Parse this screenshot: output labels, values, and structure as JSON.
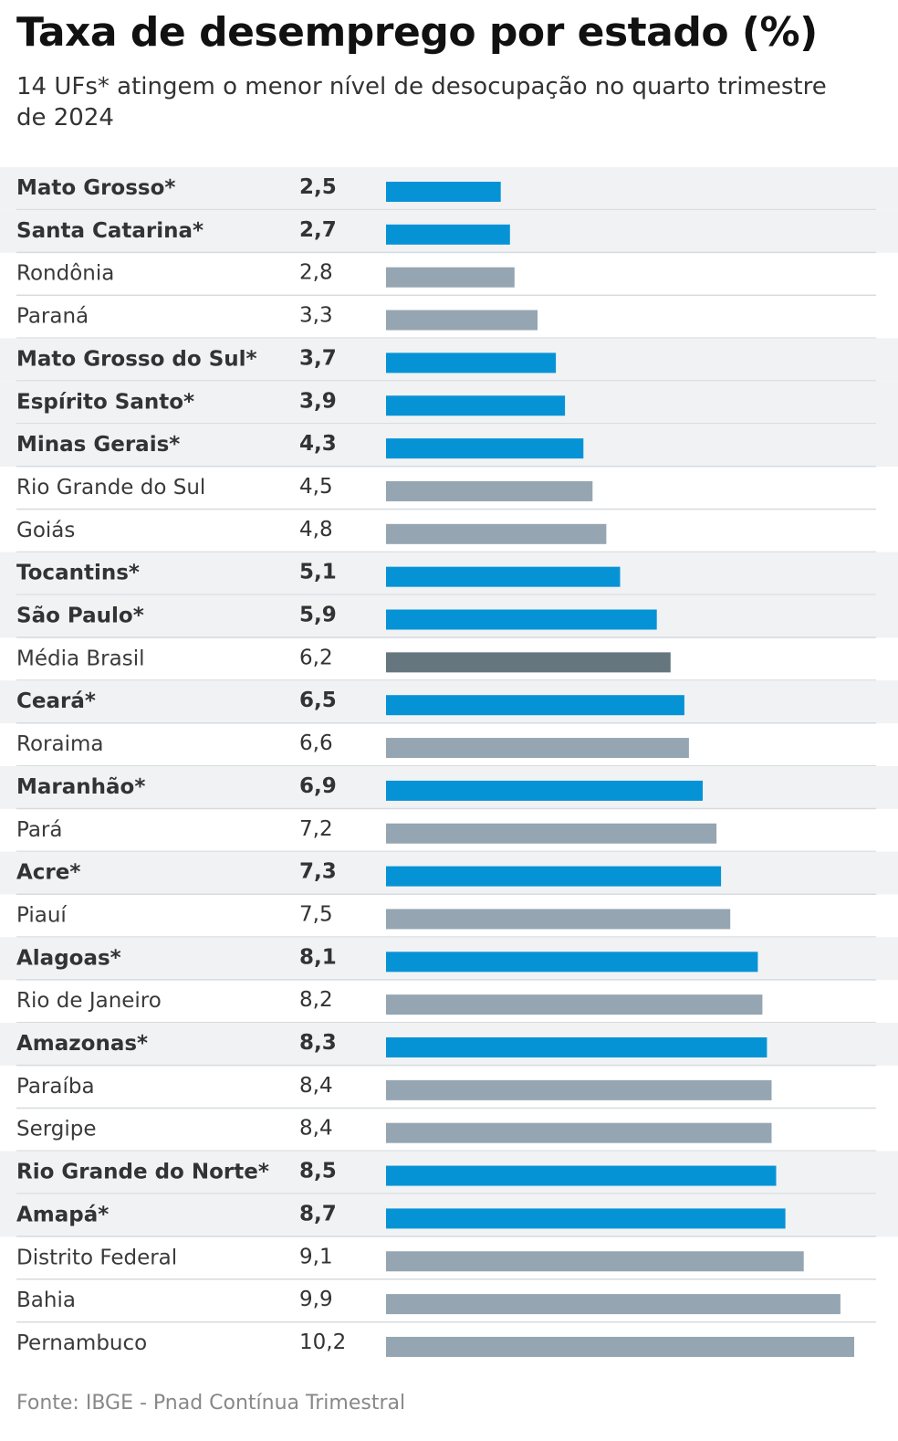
{
  "title": "Taxa de desemprego por estado (%)",
  "subtitle": "14 UFs* atingem o menor nível de desocupação no quarto trimestre de 2024",
  "source": "Fonte:  IBGE - Pnad Contínua Trimestral",
  "colors": {
    "highlight_bar": "#0693d6",
    "regular_bar": "#95a5b1",
    "average_bar": "#66767f",
    "highlight_row_bg": "#f0f2f4",
    "divider": "#d6dbdf"
  },
  "chart_data": {
    "type": "bar",
    "orientation": "horizontal",
    "xlim": [
      0,
      10.2
    ],
    "categories": [
      "Mato Grosso*",
      "Santa Catarina*",
      "Rondônia",
      "Paraná",
      "Mato Grosso do Sul*",
      "Espírito Santo*",
      "Minas Gerais*",
      "Rio Grande do Sul",
      "Goiás",
      "Tocantins*",
      "São Paulo*",
      "Média Brasil",
      "Ceará*",
      "Roraima",
      "Maranhão*",
      "Pará",
      "Acre*",
      "Piauí",
      "Alagoas*",
      "Rio de Janeiro",
      "Amazonas*",
      "Paraíba",
      "Sergipe",
      "Rio Grande do Norte*",
      "Amapá*",
      "Distrito Federal",
      "Bahia",
      "Pernambuco"
    ],
    "values": [
      2.5,
      2.7,
      2.8,
      3.3,
      3.7,
      3.9,
      4.3,
      4.5,
      4.8,
      5.1,
      5.9,
      6.2,
      6.5,
      6.6,
      6.9,
      7.2,
      7.3,
      7.5,
      8.1,
      8.2,
      8.3,
      8.4,
      8.4,
      8.5,
      8.7,
      9.1,
      9.9,
      10.2
    ],
    "value_labels": [
      "2,5",
      "2,7",
      "2,8",
      "3,3",
      "3,7",
      "3,9",
      "4,3",
      "4,5",
      "4,8",
      "5,1",
      "5,9",
      "6,2",
      "6,5",
      "6,6",
      "6,9",
      "7,2",
      "7,3",
      "7,5",
      "8,1",
      "8,2",
      "8,3",
      "8,4",
      "8,4",
      "8,5",
      "8,7",
      "9,1",
      "9,9",
      "10,2"
    ],
    "highlighted": [
      true,
      true,
      false,
      false,
      true,
      true,
      true,
      false,
      false,
      true,
      true,
      false,
      true,
      false,
      true,
      false,
      true,
      false,
      true,
      false,
      true,
      false,
      false,
      true,
      true,
      false,
      false,
      false
    ],
    "average_category": "Média Brasil"
  }
}
